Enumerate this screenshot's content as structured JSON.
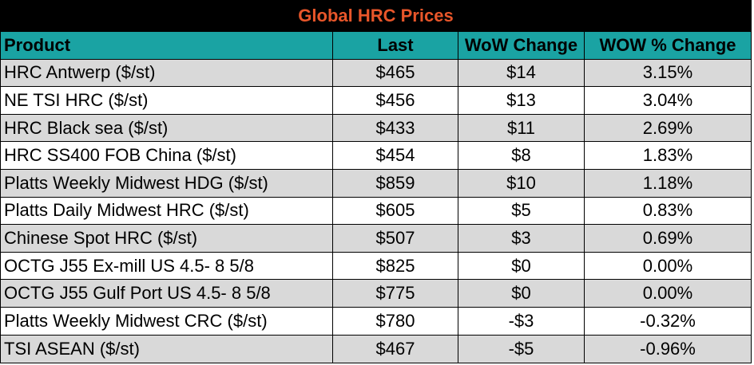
{
  "title": "Global HRC Prices",
  "headers": {
    "product": "Product",
    "last": "Last",
    "wow_change": "WoW Change",
    "wow_pct": "WOW % Change"
  },
  "rows": [
    {
      "product": "HRC Antwerp ($/st)",
      "last": "$465",
      "wow_change": "$14",
      "wow_pct": "3.15%"
    },
    {
      "product": "NE TSI HRC ($/st)",
      "last": "$456",
      "wow_change": "$13",
      "wow_pct": "3.04%"
    },
    {
      "product": "HRC Black sea ($/st)",
      "last": "$433",
      "wow_change": "$11",
      "wow_pct": "2.69%"
    },
    {
      "product": "HRC SS400 FOB China ($/st)",
      "last": "$454",
      "wow_change": "$8",
      "wow_pct": "1.83%"
    },
    {
      "product": "Platts Weekly Midwest HDG ($/st)",
      "last": "$859",
      "wow_change": "$10",
      "wow_pct": "1.18%"
    },
    {
      "product": "Platts Daily Midwest HRC ($/st)",
      "last": "$605",
      "wow_change": "$5",
      "wow_pct": "0.83%"
    },
    {
      "product": "Chinese Spot HRC ($/st)",
      "last": "$507",
      "wow_change": "$3",
      "wow_pct": "0.69%"
    },
    {
      "product": "OCTG J55 Ex-mill US 4.5- 8 5/8",
      "last": "$825",
      "wow_change": "$0",
      "wow_pct": "0.00%"
    },
    {
      "product": "OCTG J55 Gulf Port US 4.5- 8 5/8",
      "last": "$775",
      "wow_change": "$0",
      "wow_pct": "0.00%"
    },
    {
      "product": "Platts Weekly Midwest CRC ($/st)",
      "last": "$780",
      "wow_change": "-$3",
      "wow_pct": "-0.32%"
    },
    {
      "product": "TSI ASEAN ($/st)",
      "last": "$467",
      "wow_change": "-$5",
      "wow_pct": "-0.96%"
    }
  ],
  "colors": {
    "title_bg": "#000000",
    "title_text": "#e8562a",
    "header_bg": "#1aa3a3",
    "row_shade": "#d9d9d9",
    "row_plain": "#ffffff"
  }
}
